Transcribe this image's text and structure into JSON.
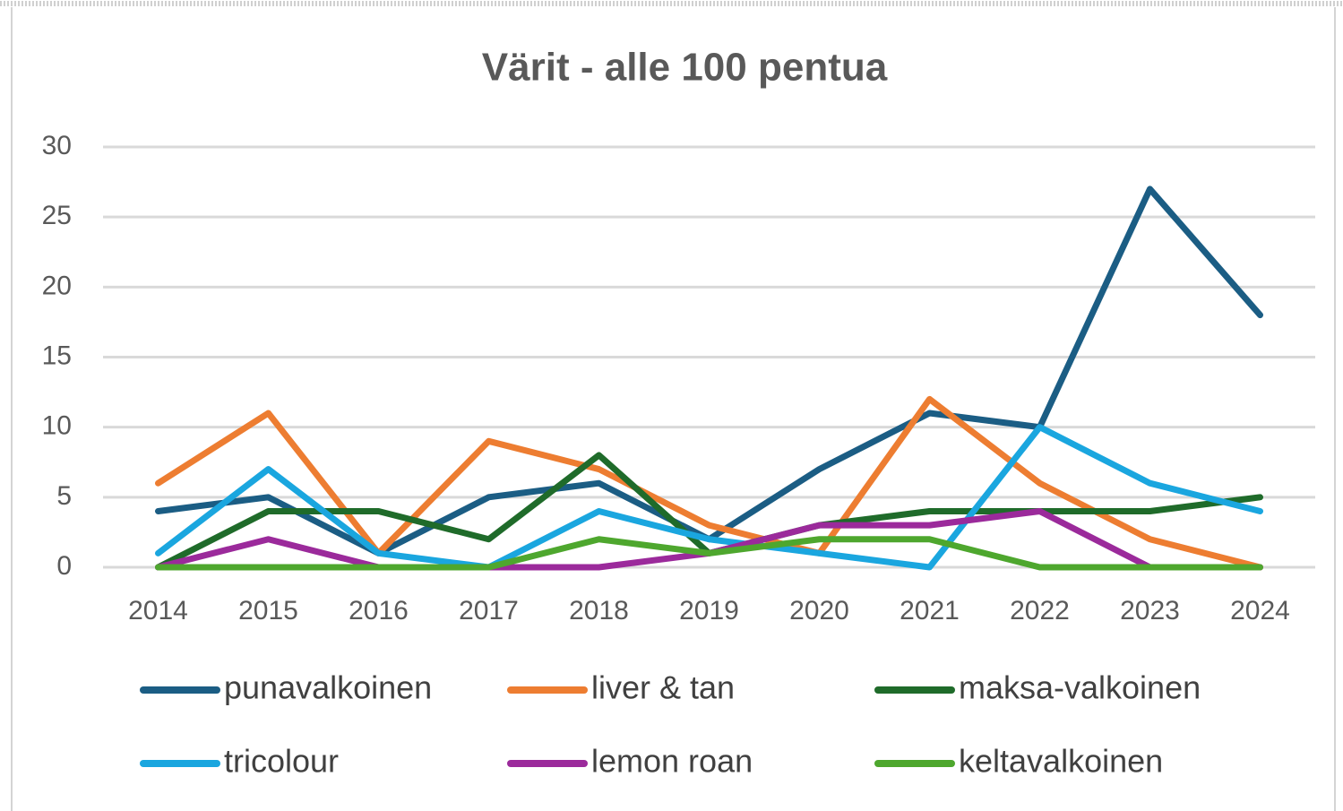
{
  "chart_data": {
    "type": "line",
    "title": "Värit - alle 100 pentua",
    "categories": [
      "2014",
      "2015",
      "2016",
      "2017",
      "2018",
      "2019",
      "2020",
      "2021",
      "2022",
      "2023",
      "2024"
    ],
    "series": [
      {
        "name": "punavalkoinen",
        "color": "#1b5d84",
        "values": [
          4,
          5,
          1,
          5,
          6,
          2,
          7,
          11,
          10,
          27,
          18
        ]
      },
      {
        "name": "liver & tan",
        "color": "#ed7d31",
        "values": [
          6,
          11,
          1,
          9,
          7,
          3,
          1,
          12,
          6,
          2,
          0
        ]
      },
      {
        "name": "maksa-valkoinen",
        "color": "#1f6b2a",
        "values": [
          0,
          4,
          4,
          2,
          8,
          1,
          3,
          4,
          4,
          4,
          5
        ]
      },
      {
        "name": "tricolour",
        "color": "#1aa6df",
        "values": [
          1,
          7,
          1,
          0,
          4,
          2,
          1,
          0,
          10,
          6,
          4
        ]
      },
      {
        "name": "lemon roan",
        "color": "#9b2a9b",
        "values": [
          0,
          2,
          0,
          0,
          0,
          1,
          3,
          3,
          4,
          0,
          0
        ]
      },
      {
        "name": "keltavalkoinen",
        "color": "#4ea72e",
        "values": [
          0,
          0,
          0,
          0,
          2,
          1,
          2,
          2,
          0,
          0,
          0
        ]
      }
    ],
    "ylim": [
      0,
      30
    ],
    "yticks": [
      0,
      5,
      10,
      15,
      20,
      25,
      30
    ],
    "grid": true,
    "legend": "bottom"
  }
}
